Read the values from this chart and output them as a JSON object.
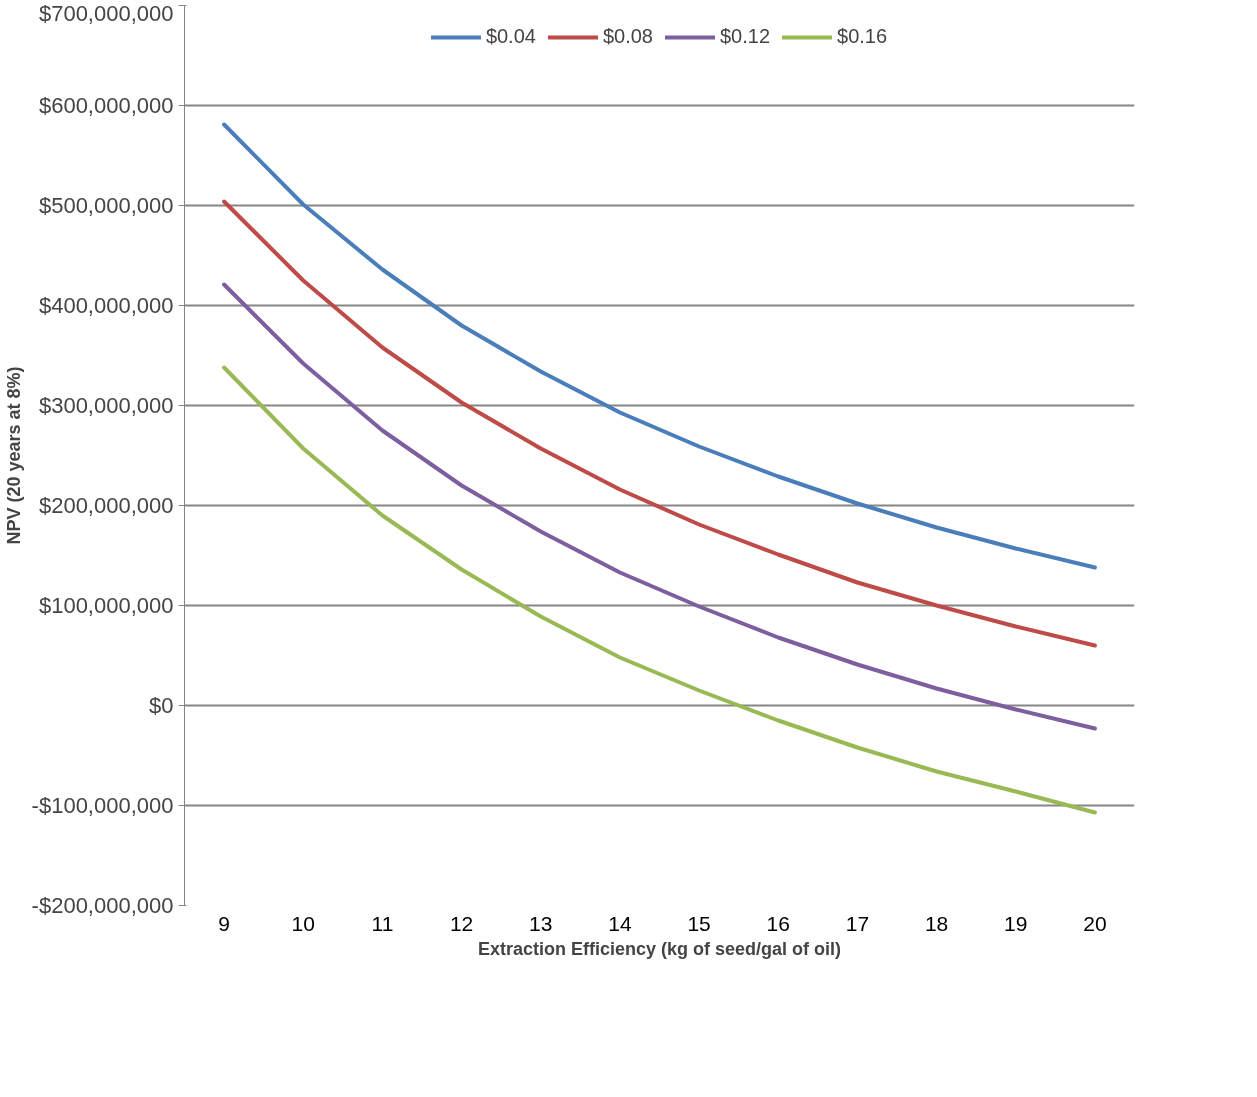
{
  "chart_data": {
    "type": "line",
    "xlabel": "Extraction Efficiency (kg of seed/gal of oil)",
    "ylabel": "NPV (20 years at 8%)",
    "categories": [
      "9",
      "10",
      "11",
      "12",
      "13",
      "14",
      "15",
      "16",
      "17",
      "18",
      "19",
      "20"
    ],
    "series": [
      {
        "name": "$0.04",
        "color": "#4a7ebb",
        "values": [
          581000000,
          501000000,
          436000000,
          380000000,
          334000000,
          293000000,
          259000000,
          229000000,
          202000000,
          178000000,
          157000000,
          138000000
        ]
      },
      {
        "name": "$0.08",
        "color": "#be4b48",
        "values": [
          504000000,
          425000000,
          358000000,
          303000000,
          257000000,
          216000000,
          181000000,
          151000000,
          123000000,
          100000000,
          79000000,
          60000000
        ]
      },
      {
        "name": "$0.12",
        "color": "#7d5fa0",
        "values": [
          421000000,
          342000000,
          275000000,
          220000000,
          174000000,
          133000000,
          99000000,
          68000000,
          41000000,
          17000000,
          -4000000,
          -23000000
        ]
      },
      {
        "name": "$0.16",
        "color": "#98b954",
        "values": [
          338000000,
          257000000,
          190000000,
          136000000,
          89000000,
          48000000,
          15000000,
          -15000000,
          -42000000,
          -66000000,
          -86000000,
          -107000000
        ]
      }
    ],
    "ylim": [
      -200000000,
      700000000
    ],
    "yticks": [
      {
        "value": -200000000,
        "label": "-$200,000,000"
      },
      {
        "value": -100000000,
        "label": "-$100,000,000"
      },
      {
        "value": 0,
        "label": "$0"
      },
      {
        "value": 100000000,
        "label": "$100,000,000"
      },
      {
        "value": 200000000,
        "label": "$200,000,000"
      },
      {
        "value": 300000000,
        "label": "$300,000,000"
      },
      {
        "value": 400000000,
        "label": "$400,000,000"
      },
      {
        "value": 500000000,
        "label": "$500,000,000"
      },
      {
        "value": 600000000,
        "label": "$600,000,000"
      },
      {
        "value": 700000000,
        "label": "$700,000,000"
      }
    ],
    "grid": "y",
    "legend": "top",
    "line_style": "solid"
  }
}
